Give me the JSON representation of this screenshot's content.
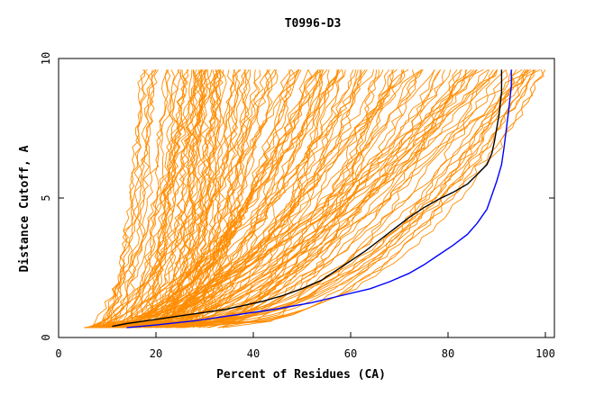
{
  "chart_data": {
    "type": "line",
    "title": "T0996-D3",
    "xlabel": "Percent of Residues (CA)",
    "ylabel": "Distance Cutoff, A",
    "xlim": [
      0,
      100
    ],
    "ylim": [
      0,
      10
    ],
    "x_ticks": [
      "0",
      "20",
      "40",
      "60",
      "80",
      "100"
    ],
    "y_ticks": [
      "0",
      "5",
      "10"
    ],
    "grid": false,
    "colors": {
      "background_series": "#ff8c00",
      "highlight_black": "#000000",
      "highlight_blue": "#0000ff",
      "axis": "#000000"
    },
    "highlight_series": [
      {
        "color": "#000000",
        "x": [
          11,
          14,
          18,
          22,
          26,
          30,
          34,
          38,
          42,
          46,
          50,
          54,
          57,
          60,
          63,
          66,
          69,
          72,
          75,
          78,
          81,
          84,
          86,
          88,
          89,
          89.5,
          90,
          90.5,
          91,
          91
        ],
        "y": [
          0.4,
          0.5,
          0.6,
          0.7,
          0.8,
          0.9,
          1.0,
          1.15,
          1.3,
          1.5,
          1.75,
          2.05,
          2.4,
          2.75,
          3.1,
          3.5,
          3.9,
          4.3,
          4.65,
          4.95,
          5.2,
          5.5,
          5.85,
          6.2,
          6.6,
          7.0,
          7.5,
          8.0,
          8.8,
          9.6
        ]
      },
      {
        "color": "#0000ff",
        "x": [
          14,
          20,
          28,
          36,
          44,
          52,
          58,
          64,
          68,
          72,
          75,
          78,
          81,
          84,
          86,
          88,
          89,
          90,
          91,
          91.5,
          92,
          92.5,
          93,
          93
        ],
        "y": [
          0.35,
          0.45,
          0.6,
          0.8,
          1.0,
          1.25,
          1.5,
          1.75,
          2.0,
          2.3,
          2.6,
          2.95,
          3.3,
          3.7,
          4.1,
          4.6,
          5.1,
          5.6,
          6.2,
          6.8,
          7.5,
          8.2,
          9.0,
          9.6
        ]
      }
    ],
    "background_series_envelope": {
      "count": 150,
      "start_x_range": [
        5,
        35
      ],
      "end_x_range": [
        15,
        100
      ],
      "y_range": [
        0.35,
        9.6
      ]
    }
  }
}
